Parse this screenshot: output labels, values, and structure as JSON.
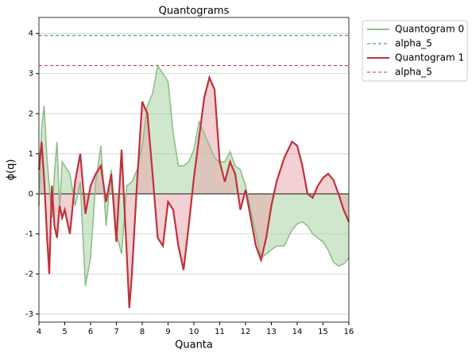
{
  "chart_data": {
    "type": "line",
    "title": "Quantograms",
    "x_label": "Quanta",
    "y_label": "ϕ(q)",
    "x": [
      4.0,
      4.1,
      4.2,
      4.3,
      4.4,
      4.5,
      4.6,
      4.7,
      4.8,
      4.9,
      5.0,
      5.2,
      5.4,
      5.6,
      5.8,
      6.0,
      6.2,
      6.4,
      6.6,
      6.8,
      7.0,
      7.2,
      7.4,
      7.5,
      7.6,
      7.8,
      8.0,
      8.2,
      8.4,
      8.6,
      8.8,
      9.0,
      9.2,
      9.4,
      9.6,
      9.8,
      10.0,
      10.2,
      10.4,
      10.6,
      10.8,
      11.0,
      11.2,
      11.4,
      11.6,
      11.8,
      12.0,
      12.2,
      12.4,
      12.6,
      12.8,
      13.0,
      13.2,
      13.5,
      13.8,
      14.0,
      14.2,
      14.4,
      14.6,
      14.8,
      15.0,
      15.2,
      15.4,
      15.6,
      15.8,
      16.0
    ],
    "series": [
      {
        "name": "Quantogram 0",
        "color": "#8fbf8a",
        "fill": "#a9d3a4",
        "values": [
          -0.3,
          1.6,
          2.2,
          1.0,
          0.2,
          -0.6,
          0.5,
          1.3,
          -0.4,
          0.8,
          0.7,
          0.5,
          -0.3,
          0.3,
          -2.3,
          -1.6,
          0.3,
          1.2,
          -0.8,
          0.6,
          -1.0,
          -1.5,
          0.2,
          0.25,
          0.3,
          0.6,
          1.2,
          2.2,
          2.5,
          3.2,
          3.0,
          2.8,
          1.5,
          0.7,
          0.7,
          0.8,
          1.1,
          1.8,
          1.5,
          1.2,
          0.9,
          0.8,
          0.8,
          1.05,
          0.7,
          0.6,
          0.2,
          -0.4,
          -1.0,
          -1.6,
          -1.5,
          -1.4,
          -1.3,
          -1.3,
          -0.9,
          -0.75,
          -0.7,
          -0.8,
          -1.0,
          -1.1,
          -1.2,
          -1.4,
          -1.7,
          -1.8,
          -1.75,
          -1.6
        ]
      },
      {
        "name": "alpha_5",
        "color": "#2e8b3e",
        "dashed": true,
        "value": 3.95
      },
      {
        "name": "Quantogram 1",
        "color": "#c0313a",
        "fill": "#e8a9ae",
        "values": [
          0.6,
          1.3,
          0.4,
          -0.9,
          -2.0,
          0.2,
          -0.8,
          -1.1,
          -0.3,
          -0.6,
          -0.4,
          -1.0,
          0.3,
          1.0,
          -0.5,
          0.2,
          0.5,
          0.7,
          -0.2,
          0.5,
          -1.2,
          1.1,
          -1.5,
          -2.85,
          -2.0,
          0.3,
          2.3,
          2.0,
          0.5,
          -1.1,
          -1.3,
          -0.2,
          -0.4,
          -1.3,
          -1.9,
          -0.8,
          0.4,
          1.4,
          2.4,
          2.9,
          2.6,
          0.8,
          0.3,
          0.8,
          0.5,
          -0.4,
          0.1,
          -0.6,
          -1.3,
          -1.65,
          -1.1,
          -0.3,
          0.3,
          0.9,
          1.3,
          1.2,
          0.7,
          0.0,
          -0.1,
          0.2,
          0.4,
          0.5,
          0.35,
          0.0,
          -0.4,
          -0.7
        ]
      },
      {
        "name": "alpha_5",
        "color": "#c0313a",
        "dashed": true,
        "value": 3.2
      }
    ],
    "xlim": [
      4,
      16
    ],
    "xticks": [
      4,
      5,
      6,
      7,
      8,
      9,
      10,
      11,
      12,
      13,
      14,
      15,
      16
    ],
    "ylim": [
      -3.2,
      4.4
    ],
    "yticks": [
      -3,
      -2,
      -1,
      0,
      1,
      2,
      3,
      4
    ],
    "grid": true,
    "legend": "outside right"
  }
}
